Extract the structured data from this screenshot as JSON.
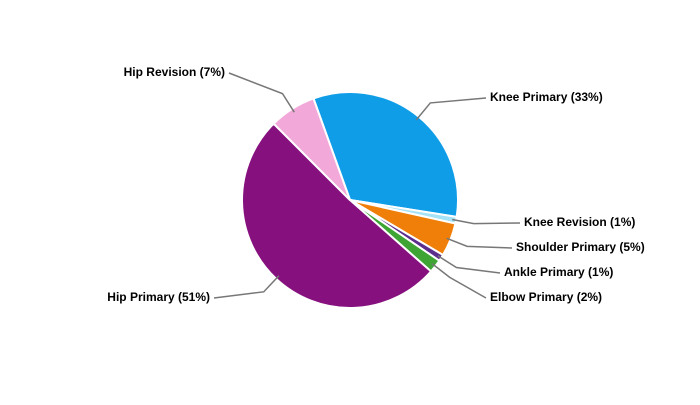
{
  "chart_data": {
    "type": "pie",
    "labels": [
      "Knee Primary (33%)",
      "Knee Revision (1%)",
      "Shoulder Primary (5%)",
      "Ankle Primary (1%)",
      "Elbow Primary (2%)",
      "Hip Primary (51%)",
      "Hip Revision (7%)"
    ],
    "values": [
      33,
      1,
      5,
      1,
      2,
      51,
      7
    ],
    "colors": [
      "#0f9de8",
      "#a6e3f7",
      "#f07f09",
      "#5b2d8c",
      "#3ea535",
      "#86117e",
      "#f2a9d9"
    ]
  }
}
